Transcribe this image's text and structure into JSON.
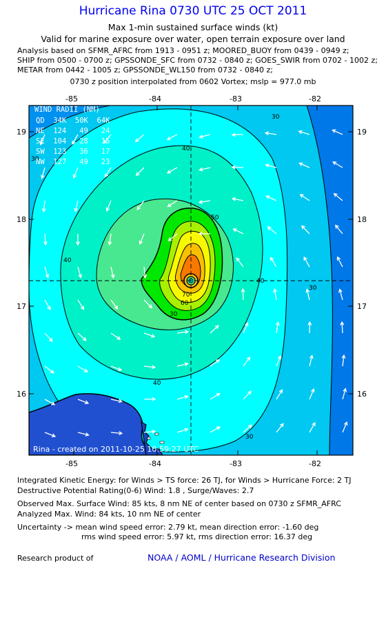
{
  "header": {
    "title": "Hurricane Rina 0730 UTC 25 OCT 2011",
    "subtitle": "Max 1-min sustained surface winds (kt)",
    "valid": "Valid for marine exposure over water, open terrain exposure over land",
    "analysis_lines": [
      "Analysis based on SFMR_AFRC from 1913 - 0951 z; MOORED_BUOY from 0439 - 0949 z;",
      "SHIP from 0500 - 0700 z; GPSSONDE_SFC from 0732 - 0840 z; GOES_SWIR from 0702 - 1002 z;",
      "METAR from 0442 - 1005 z; GPSSONDE_WL150 from 0732 - 0840 z;"
    ],
    "position": "0730 z position interpolated from 0602 Vortex; mslp = 977.0 mb"
  },
  "map": {
    "x_ticks": [
      "-85",
      "-84",
      "-83",
      "-82"
    ],
    "y_ticks": [
      "19",
      "18",
      "17",
      "16"
    ],
    "contour_labels": [
      "30",
      "40",
      "50",
      "60",
      "70",
      "40",
      "30",
      "40",
      "30",
      "40",
      "30",
      "30"
    ],
    "wind_radii": {
      "header": "QD  34K  50K  64K",
      "title": "WIND RADII (NM)",
      "rows": [
        "NE  124   49   24",
        "SE  104   28   15",
        "SW  123   36   17",
        "NW  127   49   23"
      ]
    },
    "created": "Rina - created on 2011-10-25 10:59:27 UTC",
    "colors": {
      "outer": "#00c8f0",
      "ring30": "#00ffff",
      "ring40": "#00f0c8",
      "ring50": "#48e890",
      "ring60": "#00e800",
      "ring70": "#a8f000",
      "ring80": "#f8f800",
      "ring90": "#f8c000",
      "ring100": "#f87800",
      "far": "#0090f0",
      "land": "#2050d0"
    }
  },
  "footer": {
    "ike": "Integrated Kinetic Energy:  for Winds > TS force: 26 TJ,  for Winds > Hurricane Force: 2 TJ",
    "dpr": "Destructive Potential Rating(0-6)   Wind: 1.8 , Surge/Waves: 2.7",
    "observed": "Observed Max. Surface Wind: 85 kts, 8 nm NE of center based on 0730 z SFMR_AFRC",
    "analyzed": "Analyzed Max. Wind: 84 kts, 10 nm NE of center",
    "uncertainty1": "Uncertainty -> mean wind speed error: 2.79 kt,   mean direction error:  -1.60 deg",
    "uncertainty2": "rms wind speed error: 5.97 kt,   rms direction error: 16.37 deg",
    "research": "Research product of",
    "org": "NOAA / AOML / Hurricane Research Division"
  }
}
